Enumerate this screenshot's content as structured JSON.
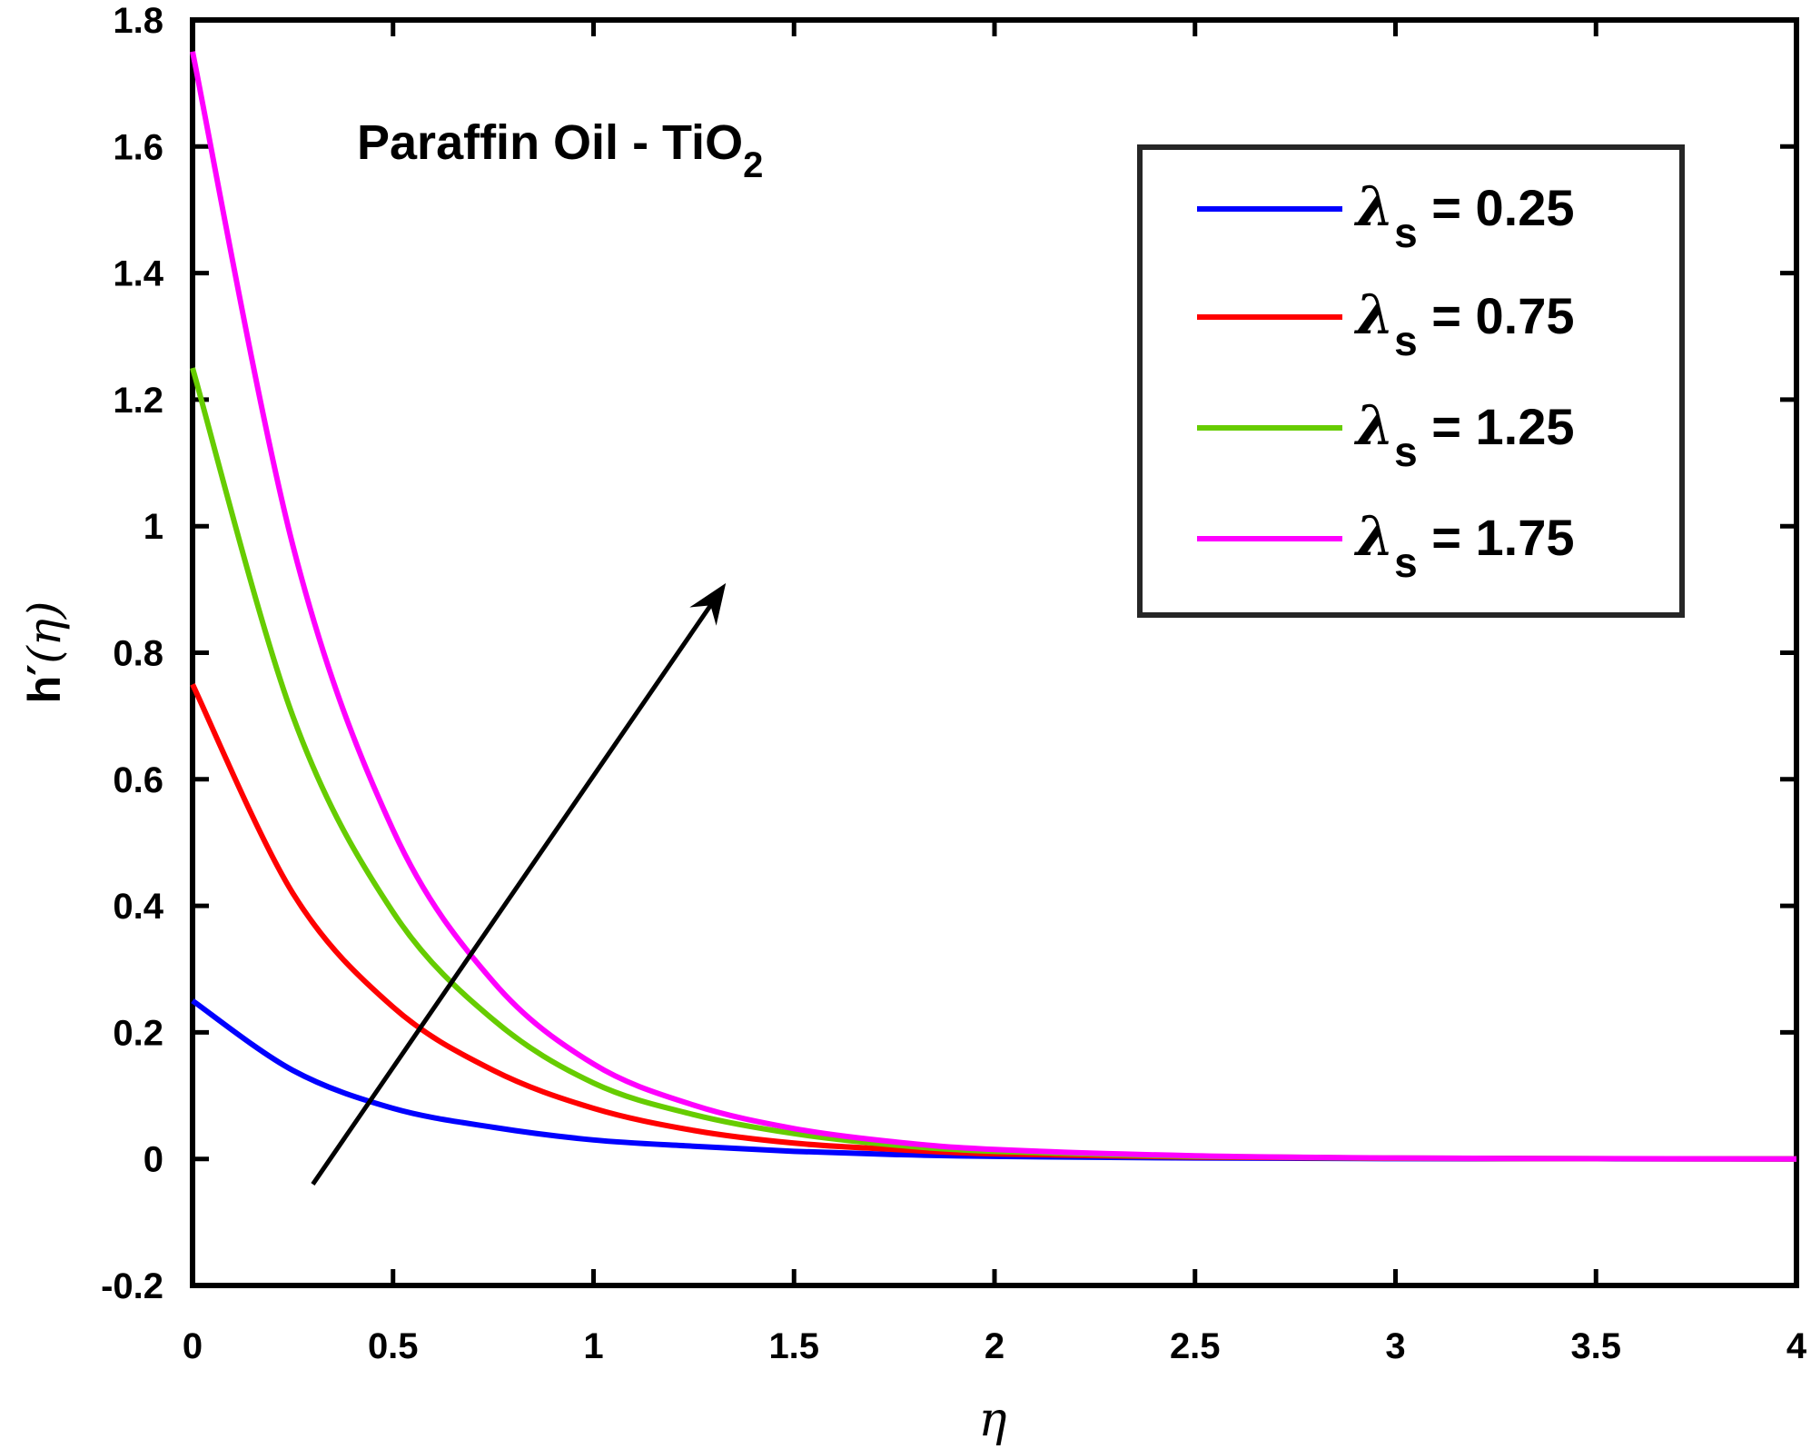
{
  "chart_data": {
    "type": "line",
    "annotation": {
      "text": "Paraffin Oil - TiO",
      "subscript": "2"
    },
    "xlabel": "η",
    "ylabel": {
      "base": "h",
      "prime": "′",
      "arg": "(η)"
    },
    "xlim": [
      0,
      4
    ],
    "ylim": [
      -0.2,
      1.8
    ],
    "x_ticks": [
      "0",
      "0.5",
      "1",
      "1.5",
      "2",
      "2.5",
      "3",
      "3.5",
      "4"
    ],
    "y_ticks": [
      "-0.2",
      "0",
      "0.2",
      "0.4",
      "0.6",
      "0.8",
      "1",
      "1.2",
      "1.4",
      "1.6",
      "1.8"
    ],
    "x": [
      0,
      0.25,
      0.5,
      0.75,
      1,
      1.25,
      1.5,
      1.75,
      2,
      2.5,
      3,
      3.5,
      4
    ],
    "series": [
      {
        "name": "λs = 0.25",
        "symbol": "λ",
        "sub": "s",
        "value_text": " = 0.25",
        "color": "#0000ff",
        "values": [
          0.25,
          0.14,
          0.08,
          0.05,
          0.03,
          0.02,
          0.012,
          0.007,
          0.004,
          0.0015,
          0.0005,
          0.0002,
          0
        ]
      },
      {
        "name": "λs = 0.75",
        "symbol": "λ",
        "sub": "s",
        "value_text": " = 0.75",
        "color": "#ff0000",
        "values": [
          0.75,
          0.42,
          0.24,
          0.14,
          0.08,
          0.045,
          0.025,
          0.015,
          0.008,
          0.003,
          0.001,
          0.0003,
          0
        ]
      },
      {
        "name": "λs = 1.25",
        "symbol": "λ",
        "sub": "s",
        "value_text": " = 1.25",
        "color": "#66cc00",
        "values": [
          1.25,
          0.7,
          0.39,
          0.22,
          0.12,
          0.07,
          0.04,
          0.022,
          0.012,
          0.004,
          0.0013,
          0.0004,
          0
        ]
      },
      {
        "name": "λs = 1.75",
        "symbol": "λ",
        "sub": "s",
        "value_text": " = 1.75",
        "color": "#ff00ff",
        "values": [
          1.75,
          0.97,
          0.52,
          0.28,
          0.15,
          0.085,
          0.048,
          0.027,
          0.015,
          0.005,
          0.0015,
          0.0005,
          0
        ]
      }
    ],
    "arrow": {
      "from": [
        0.3,
        -0.04
      ],
      "to": [
        1.33,
        0.91
      ]
    },
    "legend_position": "top-right",
    "grid": false
  }
}
